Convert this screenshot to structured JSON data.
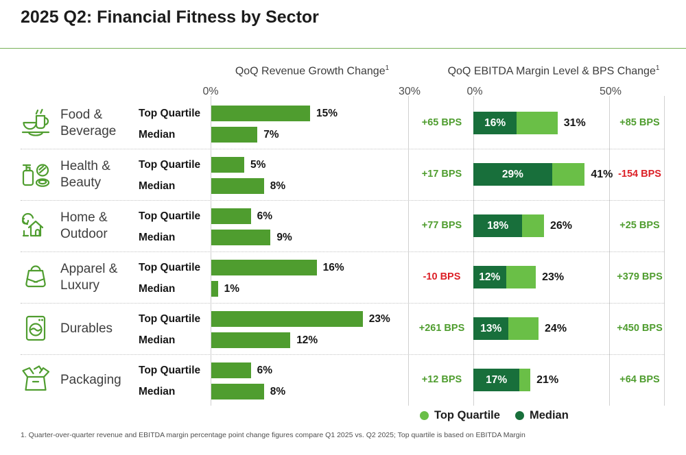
{
  "page": {
    "title": "2025 Q2: Financial Fitness by Sector",
    "footnote": "1. Quarter-over-quarter revenue and EBITDA margin percentage point change figures compare Q1 2025 vs. Q2 2025; Top quartile is based on EBITDA Margin"
  },
  "panels": {
    "revenue": {
      "title": "QoQ Revenue Growth Change",
      "sup": "1",
      "tick_min": "0%",
      "tick_max": "30%"
    },
    "ebitda": {
      "title": "QoQ EBITDA Margin Level & BPS Change",
      "sup": "1",
      "tick_min": "0%",
      "tick_max": "50%"
    }
  },
  "legend": [
    {
      "label": "Top Quartile",
      "color": "#6abf47"
    },
    {
      "label": "Median",
      "color": "#186f3b"
    }
  ],
  "colors": {
    "revenue_bar_green": "#4f9d2f",
    "top_quartile_light_green": "#6abf47",
    "median_dark_green": "#186f3b",
    "positive_bps_text": "#4f9d2f",
    "negative_bps_text": "#dc1f26",
    "title_rule_green": "#76b055"
  },
  "chart_data": {
    "type": "bar",
    "title": "2025 Q2: Financial Fitness by Sector",
    "axes": {
      "revenue_min_pct": 0,
      "revenue_max_pct": 30,
      "ebitda_min_pct": 0,
      "ebitda_max_pct": 50
    },
    "bar_labels": {
      "top_quartile": "Top Quartile",
      "median": "Median"
    },
    "rows": [
      {
        "sector": "Food & Beverage",
        "icon": "food-beverage",
        "revenue": {
          "top_quartile_pct": 15,
          "top_quartile_text": "15%",
          "median_pct": 7,
          "median_text": "7%"
        },
        "ebitda": {
          "median_pct": 16,
          "median_text": "16%",
          "top_quartile_pct": 31,
          "top_quartile_text": "31%",
          "bps_left": "+65 BPS",
          "bps_right": "+85 BPS"
        }
      },
      {
        "sector": "Health & Beauty",
        "icon": "health-beauty",
        "revenue": {
          "top_quartile_pct": 5,
          "top_quartile_text": "5%",
          "median_pct": 8,
          "median_text": "8%"
        },
        "ebitda": {
          "median_pct": 29,
          "median_text": "29%",
          "top_quartile_pct": 41,
          "top_quartile_text": "41%",
          "bps_left": "+17 BPS",
          "bps_right": "-154 BPS"
        }
      },
      {
        "sector": "Home & Outdoor",
        "icon": "home-outdoor",
        "revenue": {
          "top_quartile_pct": 6,
          "top_quartile_text": "6%",
          "median_pct": 9,
          "median_text": "9%"
        },
        "ebitda": {
          "median_pct": 18,
          "median_text": "18%",
          "top_quartile_pct": 26,
          "top_quartile_text": "26%",
          "bps_left": "+77 BPS",
          "bps_right": "+25 BPS"
        }
      },
      {
        "sector": "Apparel & Luxury",
        "icon": "apparel-luxury",
        "revenue": {
          "top_quartile_pct": 16,
          "top_quartile_text": "16%",
          "median_pct": 1,
          "median_text": "1%"
        },
        "ebitda": {
          "median_pct": 12,
          "median_text": "12%",
          "top_quartile_pct": 23,
          "top_quartile_text": "23%",
          "bps_left": "-10 BPS",
          "bps_right": "+379 BPS"
        }
      },
      {
        "sector": "Durables",
        "icon": "durables",
        "revenue": {
          "top_quartile_pct": 23,
          "top_quartile_text": "23%",
          "median_pct": 12,
          "median_text": "12%"
        },
        "ebitda": {
          "median_pct": 13,
          "median_text": "13%",
          "top_quartile_pct": 24,
          "top_quartile_text": "24%",
          "bps_left": "+261 BPS",
          "bps_right": "+450 BPS"
        }
      },
      {
        "sector": "Packaging",
        "icon": "packaging",
        "revenue": {
          "top_quartile_pct": 6,
          "top_quartile_text": "6%",
          "median_pct": 8,
          "median_text": "8%"
        },
        "ebitda": {
          "median_pct": 17,
          "median_text": "17%",
          "top_quartile_pct": 21,
          "top_quartile_text": "21%",
          "bps_left": "+12 BPS",
          "bps_right": "+64 BPS"
        }
      }
    ]
  }
}
